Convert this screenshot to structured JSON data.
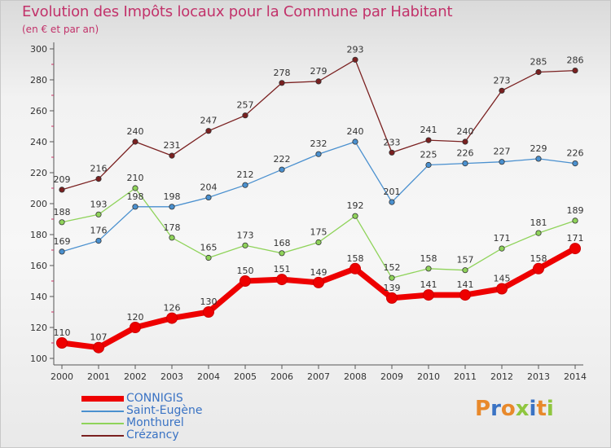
{
  "header": {
    "title": "Evolution des Impôts locaux pour la Commune par Habitant",
    "subtitle": "(en € et par an)"
  },
  "chart_data": {
    "type": "line",
    "title": "Evolution des Impôts locaux pour la Commune par Habitant",
    "subtitle": "(en € et par an)",
    "xlabel": "",
    "ylabel": "",
    "ylim": [
      100,
      300
    ],
    "yticks": [
      100,
      120,
      140,
      160,
      180,
      200,
      220,
      240,
      260,
      280,
      300
    ],
    "categories": [
      "2000",
      "2001",
      "2002",
      "2003",
      "2004",
      "2005",
      "2006",
      "2007",
      "2008",
      "2009",
      "2010",
      "2011",
      "2012",
      "2013",
      "2014"
    ],
    "grid": false,
    "legend_position": "bottom-left",
    "series": [
      {
        "name": "CONNIGIS",
        "color": "#ee0000",
        "bold": true,
        "values": [
          110,
          107,
          120,
          126,
          130,
          150,
          151,
          149,
          158,
          139,
          141,
          141,
          145,
          158,
          171
        ]
      },
      {
        "name": "Saint-Eugène",
        "color": "#4a90cf",
        "bold": false,
        "values": [
          169,
          176,
          198,
          198,
          204,
          212,
          222,
          232,
          240,
          201,
          225,
          226,
          227,
          229,
          226
        ]
      },
      {
        "name": "Monthurel",
        "color": "#8fd35a",
        "bold": false,
        "values": [
          188,
          193,
          210,
          178,
          165,
          173,
          168,
          175,
          192,
          152,
          158,
          157,
          171,
          181,
          189
        ]
      },
      {
        "name": "Crézancy",
        "color": "#7a2020",
        "bold": false,
        "values": [
          209,
          216,
          240,
          231,
          247,
          257,
          278,
          279,
          293,
          233,
          241,
          240,
          273,
          285,
          286
        ]
      }
    ]
  },
  "logo": {
    "text": "Proxiti",
    "colors": [
      "#e8892b",
      "#3a73c4",
      "#e8892b",
      "#8fc63f",
      "#3a73c4",
      "#e8892b",
      "#8fc63f"
    ]
  }
}
